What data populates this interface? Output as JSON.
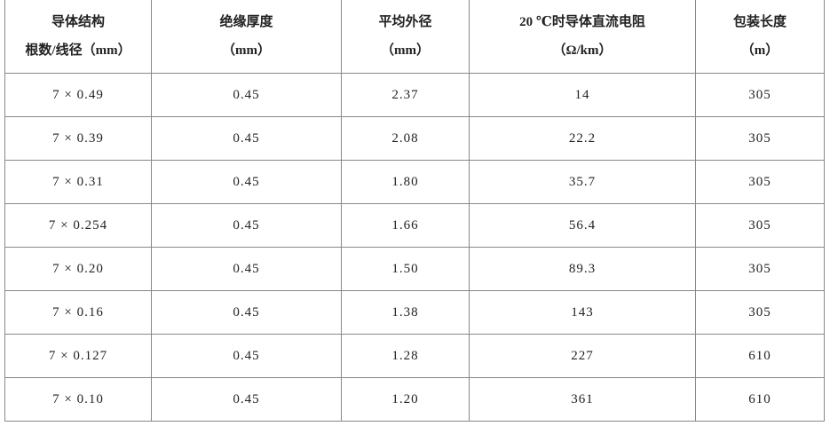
{
  "table": {
    "header": [
      [
        "导体结构",
        "根数/线径（mm）"
      ],
      [
        "绝缘厚度",
        "（mm）"
      ],
      [
        "平均外径",
        "（mm）"
      ],
      [
        "20 ℃时导体直流电阻",
        "（Ω/km）"
      ],
      [
        "包装长度",
        "（m）"
      ]
    ],
    "rows": [
      [
        "7 × 0.49",
        "0.45",
        "2.37",
        "14",
        "305"
      ],
      [
        "7 × 0.39",
        "0.45",
        "2.08",
        "22.2",
        "305"
      ],
      [
        "7 × 0.31",
        "0.45",
        "1.80",
        "35.7",
        "305"
      ],
      [
        "7 × 0.254",
        "0.45",
        "1.66",
        "56.4",
        "305"
      ],
      [
        "7 × 0.20",
        "0.45",
        "1.50",
        "89.3",
        "305"
      ],
      [
        "7 × 0.16",
        "0.45",
        "1.38",
        "143",
        "305"
      ],
      [
        "7 × 0.127",
        "0.45",
        "1.28",
        "227",
        "610"
      ],
      [
        "7 × 0.10",
        "0.45",
        "1.20",
        "361",
        "610"
      ]
    ]
  }
}
